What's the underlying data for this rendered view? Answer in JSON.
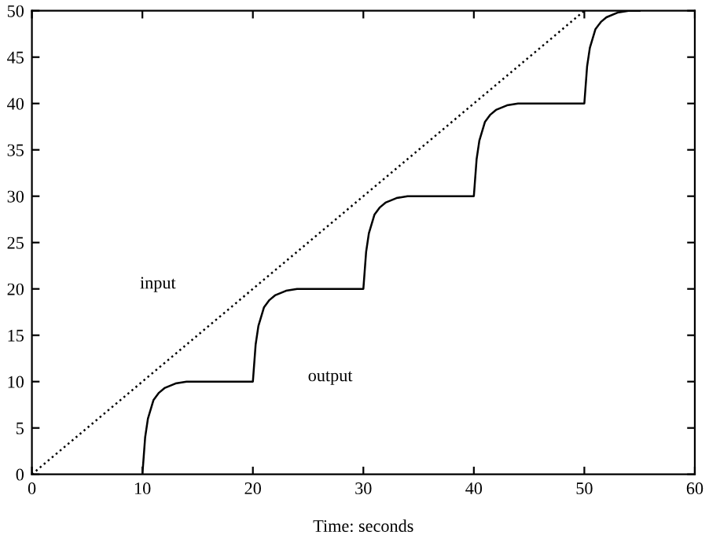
{
  "chart_data": {
    "type": "line",
    "xlabel": "Time: seconds",
    "xlim": [
      0,
      60
    ],
    "ylim": [
      0,
      50
    ],
    "xticks": [
      0,
      10,
      20,
      30,
      40,
      50,
      60
    ],
    "yticks": [
      0,
      5,
      10,
      15,
      20,
      25,
      30,
      35,
      40,
      45,
      50
    ],
    "grid": false,
    "legend": false,
    "series": [
      {
        "color": "#000000",
        "line_style": "dotted",
        "x": [
          0,
          50
        ],
        "values": [
          0,
          50
        ]
      },
      {
        "color": "#000000",
        "line_style": "solid",
        "x": [
          10,
          10.25,
          10.5,
          11,
          11.5,
          12,
          13,
          14,
          20,
          20.25,
          20.5,
          21,
          21.5,
          22,
          23,
          24,
          30,
          30.25,
          30.5,
          31,
          31.5,
          32,
          33,
          34,
          40,
          40.25,
          40.5,
          41,
          41.5,
          42,
          43,
          44,
          50,
          50.25,
          50.5,
          51,
          51.5,
          52,
          53,
          54,
          55
        ],
        "values": [
          0,
          4,
          6,
          8,
          8.8,
          9.3,
          9.8,
          10,
          10,
          14,
          16,
          18,
          18.8,
          19.3,
          19.8,
          20,
          20,
          24,
          26,
          28,
          28.8,
          29.3,
          29.8,
          30,
          30,
          34,
          36,
          38,
          38.8,
          39.3,
          39.8,
          40,
          40,
          44,
          46,
          48,
          48.8,
          49.3,
          49.8,
          50,
          50
        ]
      }
    ],
    "annotations": [
      "input",
      "output"
    ]
  }
}
